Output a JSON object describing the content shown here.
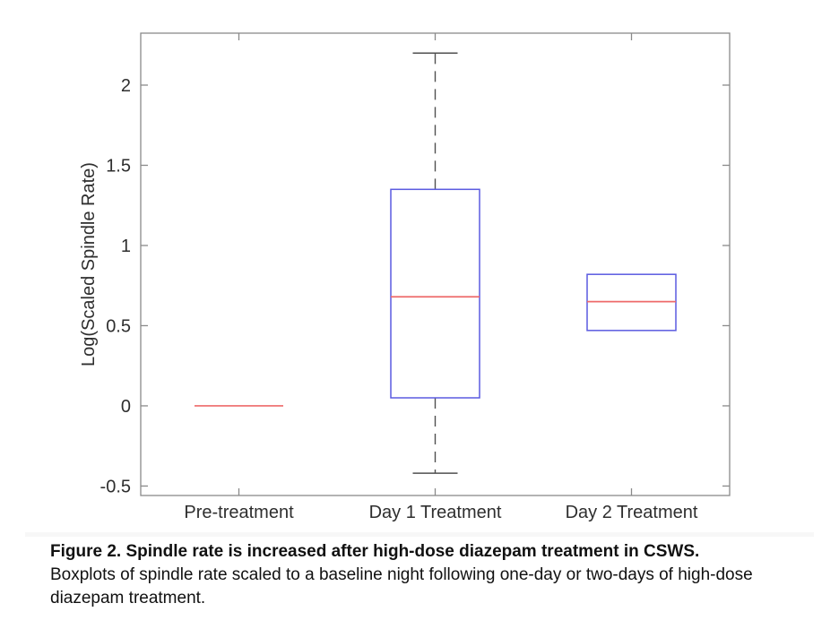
{
  "figure": {
    "caption": {
      "title": "Figure 2. Spindle rate is increased after high-dose diazepam treatment in CSWS.",
      "line2": "Boxplots of spindle rate scaled to a baseline night following one-day or two-days of high-dose",
      "line3": "diazepam treatment."
    }
  },
  "chart_data": {
    "type": "boxplot",
    "title": "",
    "xlabel": "",
    "ylabel": "Log(Scaled Spindle Rate)",
    "categories": [
      "Pre-treatment",
      "Day 1 Treatment",
      "Day 2 Treatment"
    ],
    "yticks": [
      -0.5,
      0,
      0.5,
      1,
      1.5,
      2
    ],
    "ylim": [
      -0.559,
      2.324
    ],
    "grid": false,
    "legend": "none",
    "series": [
      {
        "category": "Pre-treatment",
        "q1": 0,
        "median": 0,
        "q3": 0,
        "whisker_low": null,
        "whisker_high": null
      },
      {
        "category": "Day 1 Treatment",
        "q1": 0.05,
        "median": 0.68,
        "q3": 1.35,
        "whisker_low": -0.42,
        "whisker_high": 2.2
      },
      {
        "category": "Day 2 Treatment",
        "q1": 0.47,
        "median": 0.65,
        "q3": 0.82,
        "whisker_low": null,
        "whisker_high": null
      }
    ],
    "colors": {
      "box": "#5a5ae0",
      "median": "#ee6a6a",
      "whisker": "#4f4f4f",
      "axis": "#8a8a8a",
      "text": "#2e2e2e"
    }
  }
}
